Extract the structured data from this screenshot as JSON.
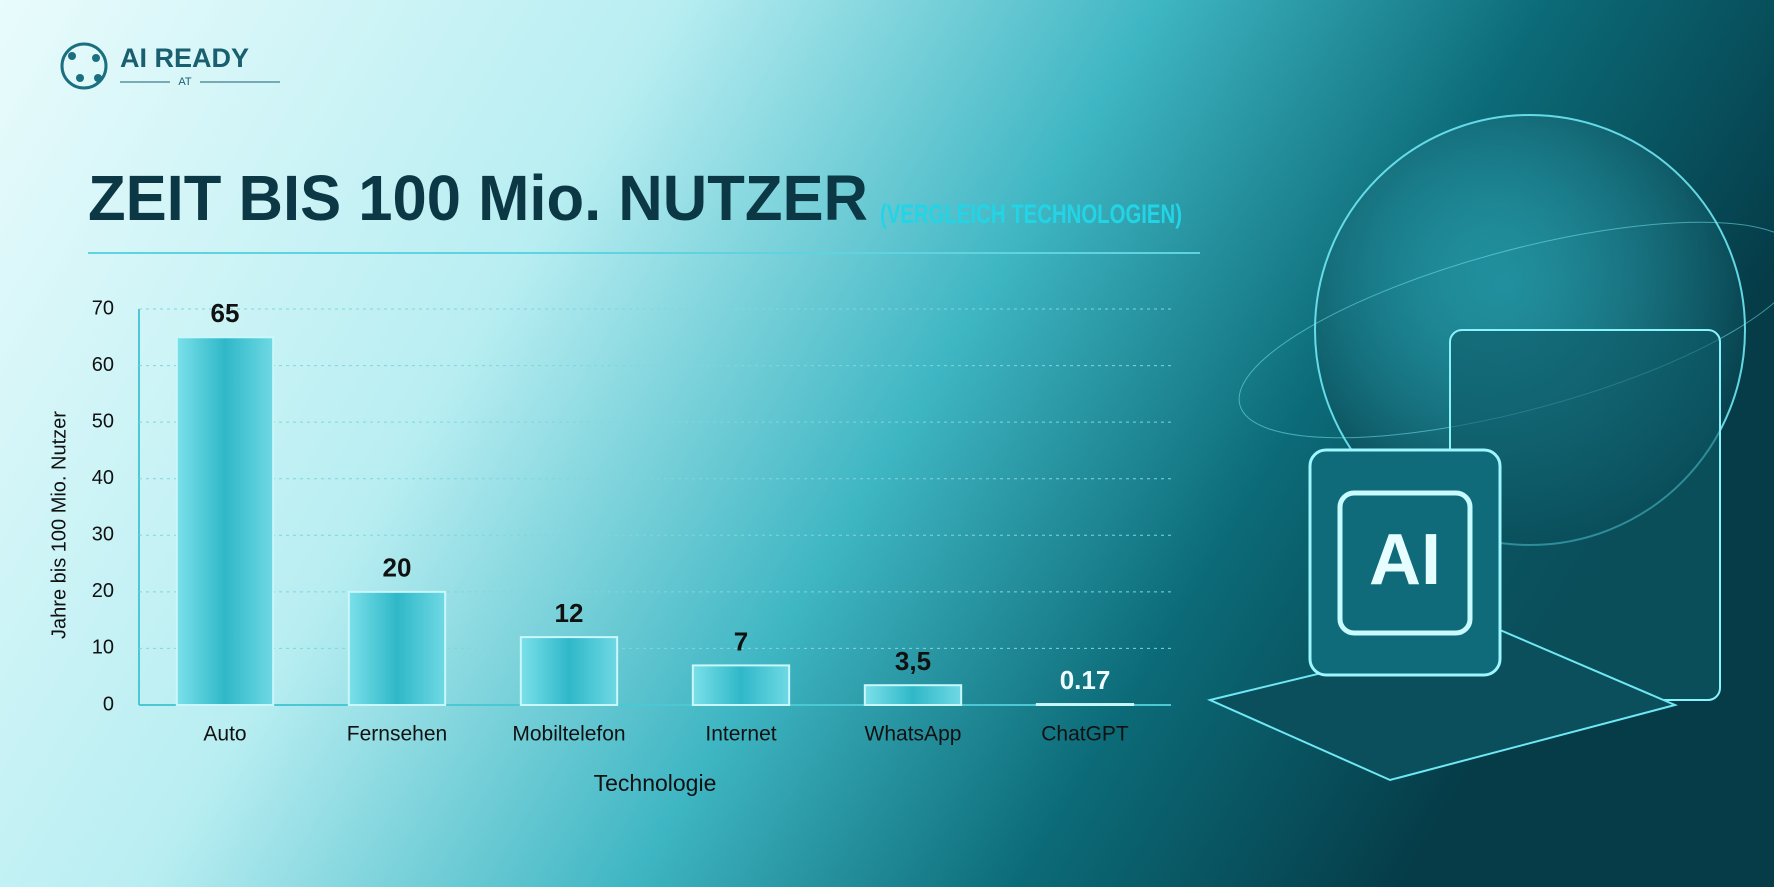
{
  "brand": {
    "name": "AI READY",
    "sub": "AT"
  },
  "illustration": {
    "badge": "AI"
  },
  "chart_data": {
    "type": "bar",
    "title": "ZEIT BIS 100 Mio. NUTZER",
    "subtitle": "(VERGLEICH TECHNOLOGIEN)",
    "x_label": "Technologie",
    "y_label": "Jahre bis 100 Mio. Nutzer",
    "categories": [
      "Auto",
      "Fernsehen",
      "Mobiltelefon",
      "Internet",
      "WhatsApp",
      "ChatGPT"
    ],
    "values": [
      65,
      20,
      12,
      7,
      3.5,
      0.17
    ],
    "value_labels": [
      "65",
      "20",
      "12",
      "7",
      "3,5",
      "0.17"
    ],
    "color": "#2fb8c8",
    "ylim": [
      0,
      70
    ],
    "yticks": [
      0,
      10,
      20,
      30,
      40,
      50,
      60,
      70
    ],
    "grid": true
  }
}
